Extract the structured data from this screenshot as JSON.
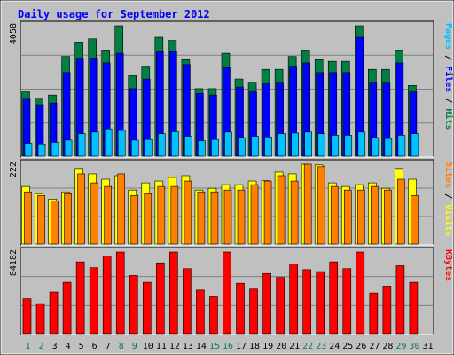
{
  "chart_data": {
    "type": "bar",
    "title": "Daily usage for September 2012",
    "categories": [
      "1",
      "2",
      "3",
      "4",
      "5",
      "6",
      "7",
      "8",
      "9",
      "10",
      "11",
      "12",
      "13",
      "14",
      "15",
      "16",
      "17",
      "18",
      "19",
      "20",
      "21",
      "22",
      "23",
      "24",
      "25",
      "26",
      "27",
      "28",
      "29",
      "30",
      "31"
    ],
    "weekend_days": [
      "1",
      "2",
      "8",
      "9",
      "15",
      "16",
      "22",
      "23",
      "29",
      "30"
    ],
    "panels": [
      {
        "id": "pages-files-hits",
        "ymax": 4058,
        "ymax_label": "4058",
        "legend": [
          {
            "text": "Pages",
            "color": "#00C0FF"
          },
          {
            "text": " / ",
            "color": "#000000"
          },
          {
            "text": "Files",
            "color": "#0000FF"
          },
          {
            "text": " / ",
            "color": "#000000"
          },
          {
            "text": "Hits",
            "color": "#008040"
          }
        ],
        "series": [
          {
            "name": "Hits",
            "color": "#008040",
            "values": [
              2000,
              1800,
              1900,
              3100,
              3550,
              3650,
              3300,
              4058,
              2500,
              2800,
              3700,
              3600,
              3000,
              2100,
              2100,
              3200,
              2400,
              2300,
              2700,
              2700,
              3100,
              3300,
              3000,
              2950,
              2950,
              4058,
              2700,
              2700,
              3300,
              2200,
              0
            ]
          },
          {
            "name": "Files",
            "color": "#0000FF",
            "values": [
              1800,
              1600,
              1650,
              2600,
              3050,
              3050,
              2900,
              3200,
              2100,
              2400,
              3250,
              3250,
              2850,
              1950,
              1900,
              2750,
              2150,
              2000,
              2250,
              2300,
              2800,
              2900,
              2600,
              2600,
              2600,
              3700,
              2300,
              2300,
              2900,
              2000,
              0
            ]
          },
          {
            "name": "Pages",
            "color": "#00C0FF",
            "values": [
              400,
              380,
              430,
              500,
              700,
              750,
              850,
              800,
              500,
              520,
              700,
              760,
              620,
              480,
              520,
              750,
              580,
              620,
              600,
              700,
              720,
              750,
              700,
              650,
              650,
              750,
              580,
              550,
              650,
              700,
              0
            ]
          }
        ]
      },
      {
        "id": "sites-visits",
        "ymax": 222,
        "ymax_label": "222",
        "legend": [
          {
            "text": "Sites",
            "color": "#FF8000"
          },
          {
            "text": " / ",
            "color": "#000000"
          },
          {
            "text": "Visits",
            "color": "#FFFF00"
          }
        ],
        "series": [
          {
            "name": "Visits",
            "color": "#FFFF00",
            "values": [
              160,
              140,
              125,
              145,
              210,
              195,
              180,
              190,
              150,
              170,
              175,
              185,
              190,
              150,
              155,
              165,
              165,
              175,
              176,
              200,
              195,
              222,
              220,
              170,
              160,
              165,
              170,
              155,
              210,
              180,
              0
            ]
          },
          {
            "name": "Sites",
            "color": "#FF8000",
            "values": [
              145,
              135,
              120,
              140,
              195,
              170,
              160,
              195,
              135,
              140,
              160,
              160,
              175,
              145,
              145,
              150,
              150,
              165,
              175,
              190,
              175,
              222,
              215,
              160,
              150,
              150,
              160,
              150,
              180,
              135,
              0
            ]
          }
        ]
      },
      {
        "id": "kbytes",
        "ymax": 84182,
        "ymax_label": "84182",
        "legend": [
          {
            "text": "KBytes",
            "color": "#FF0000"
          }
        ],
        "series": [
          {
            "name": "KBytes",
            "color": "#FF0000",
            "values": [
              36000,
              31000,
              43000,
              53000,
              74000,
              68000,
              80000,
              84182,
              60000,
              53000,
              73000,
              84182,
              67000,
              45000,
              38000,
              84182,
              52000,
              46000,
              62000,
              58000,
              72000,
              66000,
              64000,
              74000,
              67000,
              84182,
              42000,
              49000,
              70000,
              53000,
              0
            ]
          }
        ]
      }
    ],
    "colors": {
      "background": "#C0C0C0",
      "outer": "#FFFFFF",
      "title": "#0000FF",
      "weekday_label": "#000000",
      "weekend_label": "#008040"
    }
  }
}
